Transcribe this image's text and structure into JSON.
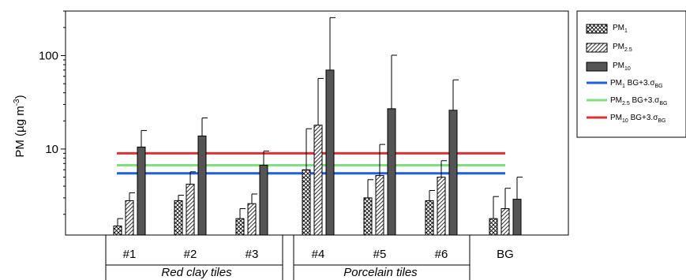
{
  "chart_data": {
    "type": "bar",
    "categories": [
      "#1",
      "#2",
      "#3",
      "#4",
      "#5",
      "#6",
      "BG"
    ],
    "groups": [
      {
        "label": "Red clay tiles",
        "categories": [
          "#1",
          "#2",
          "#3"
        ]
      },
      {
        "label": "Porcelain tiles",
        "categories": [
          "#4",
          "#5",
          "#6"
        ]
      }
    ],
    "ylabel": {
      "main": "PM (µg m",
      "sup": "-3",
      "close": ")"
    },
    "yscale": "log",
    "ylim": [
      1.2,
      300
    ],
    "yticks": [
      {
        "value": 10,
        "label": "10"
      },
      {
        "value": 100,
        "label": "100"
      }
    ],
    "series": [
      {
        "name": {
          "main": "PM",
          "sub": "1"
        },
        "pattern": "crosshatch",
        "values": [
          1.5,
          2.8,
          1.8,
          6.0,
          3.0,
          2.8,
          1.8
        ],
        "err_upper": [
          1.8,
          3.2,
          2.3,
          16.5,
          4.7,
          3.6,
          3.1
        ]
      },
      {
        "name": {
          "main": "PM",
          "sub": "2.5"
        },
        "pattern": "diagonal",
        "values": [
          2.8,
          4.2,
          2.6,
          18.0,
          5.2,
          5.0,
          2.3
        ],
        "err_upper": [
          3.4,
          5.7,
          3.3,
          57.0,
          11.2,
          7.5,
          3.8
        ]
      },
      {
        "name": {
          "main": "PM",
          "sub": "10"
        },
        "pattern": "solid-dark",
        "values": [
          10.5,
          13.8,
          6.7,
          70.0,
          27.0,
          26.0,
          2.9
        ],
        "err_upper": [
          15.8,
          21.5,
          9.5,
          255.0,
          101.0,
          55.0,
          5.0
        ]
      }
    ],
    "reference_lines": [
      {
        "name": {
          "main": "PM",
          "sub": "1",
          "rest": " BG+3.σ",
          "sub2": "BG"
        },
        "value": 5.5,
        "color": "#1f5fe0"
      },
      {
        "name": {
          "main": "PM",
          "sub": "2.5",
          "rest": " BG+3.σ",
          "sub2": "BG"
        },
        "value": 6.7,
        "color": "#7ee07e"
      },
      {
        "name": {
          "main": "PM",
          "sub": "10",
          "rest": " BG+3.σ",
          "sub2": "BG"
        },
        "value": 9.0,
        "color": "#e03030"
      }
    ],
    "legend_placement": "right",
    "grid": false
  }
}
